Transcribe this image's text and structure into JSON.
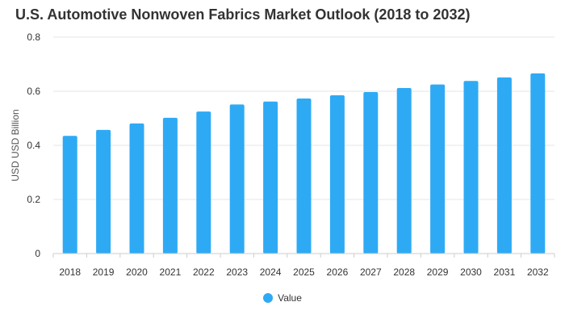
{
  "chart_data": {
    "type": "bar",
    "title": "U.S. Automotive Nonwoven Fabrics Market Outlook (2018 to 2032)",
    "xlabel": "",
    "ylabel": "USD USD Billion",
    "categories": [
      "2018",
      "2019",
      "2020",
      "2021",
      "2022",
      "2023",
      "2024",
      "2025",
      "2026",
      "2027",
      "2028",
      "2029",
      "2030",
      "2031",
      "2032"
    ],
    "series": [
      {
        "name": "Value",
        "values": [
          0.435,
          0.457,
          0.481,
          0.502,
          0.525,
          0.551,
          0.562,
          0.573,
          0.585,
          0.597,
          0.612,
          0.625,
          0.638,
          0.651,
          0.666
        ]
      }
    ],
    "ylim": [
      0,
      0.8
    ],
    "yticks": [
      "0",
      "0.2",
      "0.4",
      "0.6",
      "0.8"
    ],
    "ytick_values": [
      0,
      0.2,
      0.4,
      0.6,
      0.8
    ],
    "grid": true,
    "legend_position": "bottom-center",
    "colors": {
      "bar": "#2eaaf5",
      "grid": "#e6e6e6",
      "axis": "#cccccc",
      "text": "#333333",
      "axis_text": "#333333"
    }
  }
}
